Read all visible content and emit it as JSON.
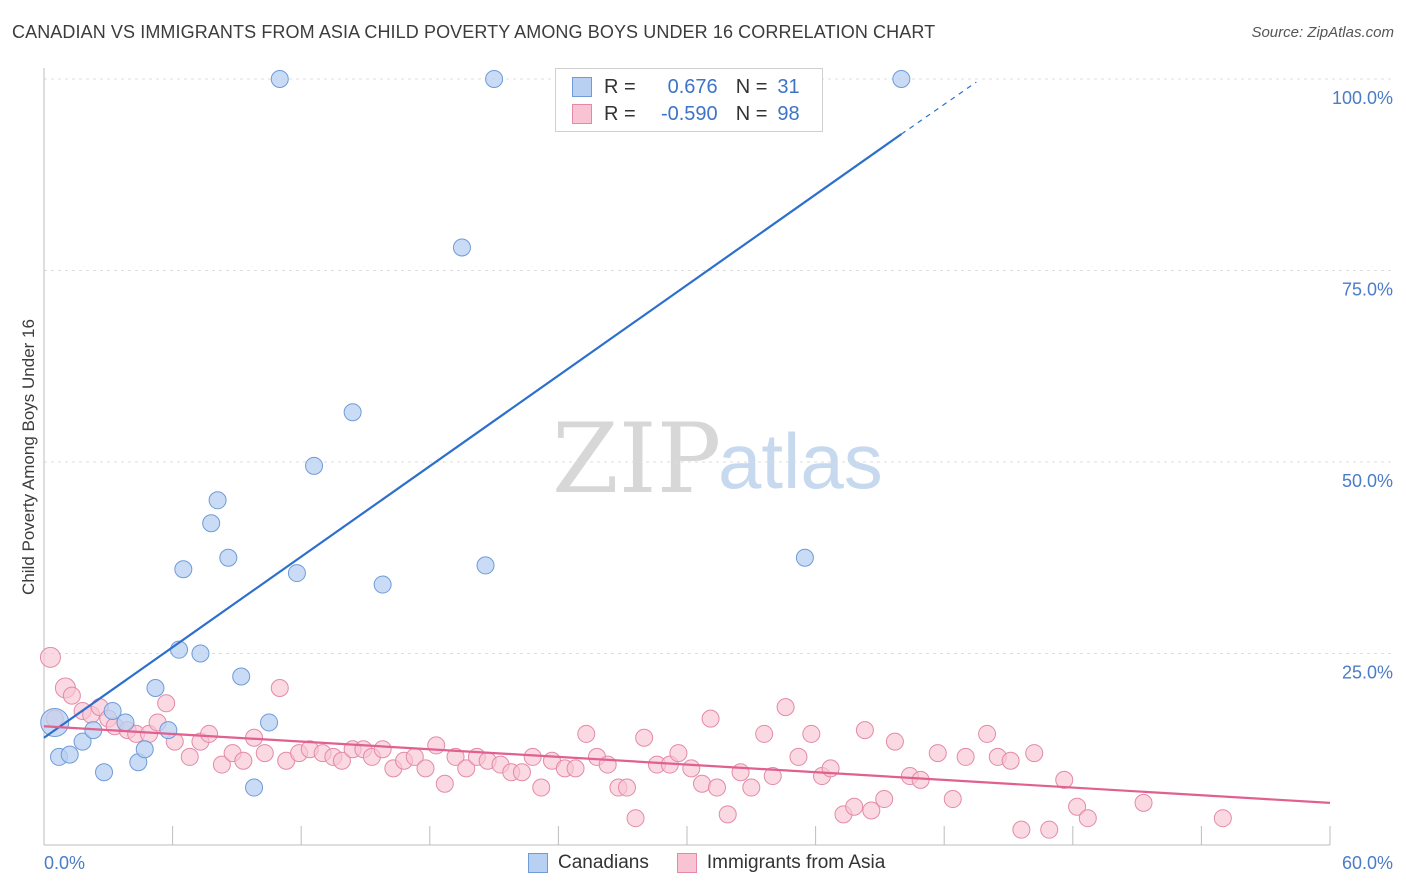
{
  "title": "CANADIAN VS IMMIGRANTS FROM ASIA CHILD POVERTY AMONG BOYS UNDER 16 CORRELATION CHART",
  "source": "Source: ZipAtlas.com",
  "watermark": {
    "zip": "ZIP",
    "atlas": "atlas"
  },
  "legend": {
    "rows": [
      {
        "r_label": "R =",
        "r_value": "0.676",
        "n_label": "N =",
        "n_value": "31"
      },
      {
        "r_label": "R =",
        "r_value": "-0.590",
        "n_label": "N =",
        "n_value": "98"
      }
    ]
  },
  "bottom_legend": [
    "Canadians",
    "Immigrants from Asia"
  ],
  "colors": {
    "canadians_fill": "#b8d0f2",
    "canadians_stroke": "#6f9bd8",
    "canadians_line": "#2d6fcc",
    "asia_fill": "#f8c4d4",
    "asia_stroke": "#e48aa8",
    "asia_line": "#e06090",
    "tick_label": "#4a7cc7",
    "grid": "#dcdcdc"
  },
  "chart_data": {
    "type": "scatter",
    "title": "CANADIAN VS IMMIGRANTS FROM ASIA CHILD POVERTY AMONG BOYS UNDER 16 CORRELATION CHART",
    "xlabel": "",
    "ylabel": "Child Poverty Among Boys Under 16",
    "xlim": [
      0,
      60
    ],
    "ylim": [
      0,
      100
    ],
    "x_tick_labels": [
      "0.0%",
      "60.0%"
    ],
    "y_tick_labels": [
      "25.0%",
      "50.0%",
      "75.0%",
      "100.0%"
    ],
    "y_ticks": [
      25,
      50,
      75,
      100
    ],
    "x_minor_ticks": [
      6,
      12,
      18,
      24,
      30,
      36,
      42,
      48,
      54,
      60
    ],
    "grid": "horizontal dashed",
    "legend_position": "top-center",
    "series": [
      {
        "name": "Canadians",
        "r": 0.676,
        "n": 31,
        "points": [
          [
            0.5,
            16.0
          ],
          [
            0.7,
            11.5
          ],
          [
            1.2,
            11.8
          ],
          [
            1.8,
            13.5
          ],
          [
            2.3,
            15.0
          ],
          [
            2.8,
            9.5
          ],
          [
            3.2,
            17.5
          ],
          [
            3.8,
            16.0
          ],
          [
            4.4,
            10.8
          ],
          [
            4.7,
            12.5
          ],
          [
            5.2,
            20.5
          ],
          [
            5.8,
            15.0
          ],
          [
            6.3,
            25.5
          ],
          [
            6.5,
            36.0
          ],
          [
            7.3,
            25.0
          ],
          [
            7.8,
            42.0
          ],
          [
            8.1,
            45.0
          ],
          [
            8.6,
            37.5
          ],
          [
            9.2,
            22.0
          ],
          [
            9.8,
            7.5
          ],
          [
            10.5,
            16.0
          ],
          [
            11.0,
            100.0
          ],
          [
            11.8,
            35.5
          ],
          [
            12.6,
            49.5
          ],
          [
            14.4,
            56.5
          ],
          [
            15.8,
            34.0
          ],
          [
            19.5,
            78.0
          ],
          [
            20.6,
            36.5
          ],
          [
            21.0,
            100.0
          ],
          [
            35.5,
            37.5
          ],
          [
            40.0,
            100.0
          ]
        ],
        "trend": {
          "x_start": 0,
          "y_start": 14.0,
          "x_end": 40.0,
          "y_end": 92.8,
          "dashed_to_x": 43.5,
          "dashed_to_y": 99.6
        }
      },
      {
        "name": "Immigrants from Asia",
        "r": -0.59,
        "n": 98,
        "points": [
          [
            0.3,
            24.5
          ],
          [
            0.5,
            16.5
          ],
          [
            1.0,
            20.5
          ],
          [
            1.3,
            19.5
          ],
          [
            1.8,
            17.5
          ],
          [
            2.2,
            17.0
          ],
          [
            2.6,
            18.0
          ],
          [
            3.0,
            16.5
          ],
          [
            3.3,
            15.5
          ],
          [
            3.9,
            15.0
          ],
          [
            4.3,
            14.5
          ],
          [
            4.9,
            14.5
          ],
          [
            5.3,
            16.0
          ],
          [
            5.7,
            18.5
          ],
          [
            6.1,
            13.5
          ],
          [
            6.8,
            11.5
          ],
          [
            7.3,
            13.5
          ],
          [
            7.7,
            14.5
          ],
          [
            8.3,
            10.5
          ],
          [
            8.8,
            12.0
          ],
          [
            9.3,
            11.0
          ],
          [
            9.8,
            14.0
          ],
          [
            10.3,
            12.0
          ],
          [
            11.0,
            20.5
          ],
          [
            11.3,
            11.0
          ],
          [
            11.9,
            12.0
          ],
          [
            12.4,
            12.5
          ],
          [
            13.0,
            12.0
          ],
          [
            13.5,
            11.5
          ],
          [
            13.9,
            11.0
          ],
          [
            14.4,
            12.5
          ],
          [
            14.9,
            12.5
          ],
          [
            15.3,
            11.5
          ],
          [
            15.8,
            12.5
          ],
          [
            16.3,
            10.0
          ],
          [
            16.8,
            11.0
          ],
          [
            17.3,
            11.5
          ],
          [
            17.8,
            10.0
          ],
          [
            18.3,
            13.0
          ],
          [
            18.7,
            8.0
          ],
          [
            19.2,
            11.5
          ],
          [
            19.7,
            10.0
          ],
          [
            20.2,
            11.5
          ],
          [
            20.7,
            11.0
          ],
          [
            21.3,
            10.5
          ],
          [
            21.8,
            9.5
          ],
          [
            22.3,
            9.5
          ],
          [
            22.8,
            11.5
          ],
          [
            23.2,
            7.5
          ],
          [
            23.7,
            11.0
          ],
          [
            24.3,
            10.0
          ],
          [
            24.8,
            10.0
          ],
          [
            25.3,
            14.5
          ],
          [
            25.8,
            11.5
          ],
          [
            26.3,
            10.5
          ],
          [
            26.8,
            7.5
          ],
          [
            27.2,
            7.5
          ],
          [
            27.6,
            3.5
          ],
          [
            28.0,
            14.0
          ],
          [
            28.6,
            10.5
          ],
          [
            29.2,
            10.5
          ],
          [
            29.6,
            12.0
          ],
          [
            30.2,
            10.0
          ],
          [
            30.7,
            8.0
          ],
          [
            31.1,
            16.5
          ],
          [
            31.4,
            7.5
          ],
          [
            31.9,
            4.0
          ],
          [
            32.5,
            9.5
          ],
          [
            33.0,
            7.5
          ],
          [
            33.6,
            14.5
          ],
          [
            34.0,
            9.0
          ],
          [
            34.6,
            18.0
          ],
          [
            35.2,
            11.5
          ],
          [
            35.8,
            14.5
          ],
          [
            36.3,
            9.0
          ],
          [
            36.7,
            10.0
          ],
          [
            37.3,
            4.0
          ],
          [
            37.8,
            5.0
          ],
          [
            38.3,
            15.0
          ],
          [
            38.6,
            4.5
          ],
          [
            39.2,
            6.0
          ],
          [
            39.7,
            13.5
          ],
          [
            40.4,
            9.0
          ],
          [
            40.9,
            8.5
          ],
          [
            41.7,
            12.0
          ],
          [
            42.4,
            6.0
          ],
          [
            43.0,
            11.5
          ],
          [
            44.0,
            14.5
          ],
          [
            44.5,
            11.5
          ],
          [
            45.1,
            11.0
          ],
          [
            45.6,
            2.0
          ],
          [
            46.2,
            12.0
          ],
          [
            46.9,
            2.0
          ],
          [
            47.6,
            8.5
          ],
          [
            48.2,
            5.0
          ],
          [
            48.7,
            3.5
          ],
          [
            51.3,
            5.5
          ],
          [
            55.0,
            3.5
          ]
        ],
        "big_points": [
          [
            0.3,
            24.5
          ],
          [
            1.0,
            20.5
          ]
        ],
        "trend": {
          "x_start": 0,
          "y_start": 15.5,
          "x_end": 60,
          "y_end": 5.5
        }
      }
    ]
  }
}
